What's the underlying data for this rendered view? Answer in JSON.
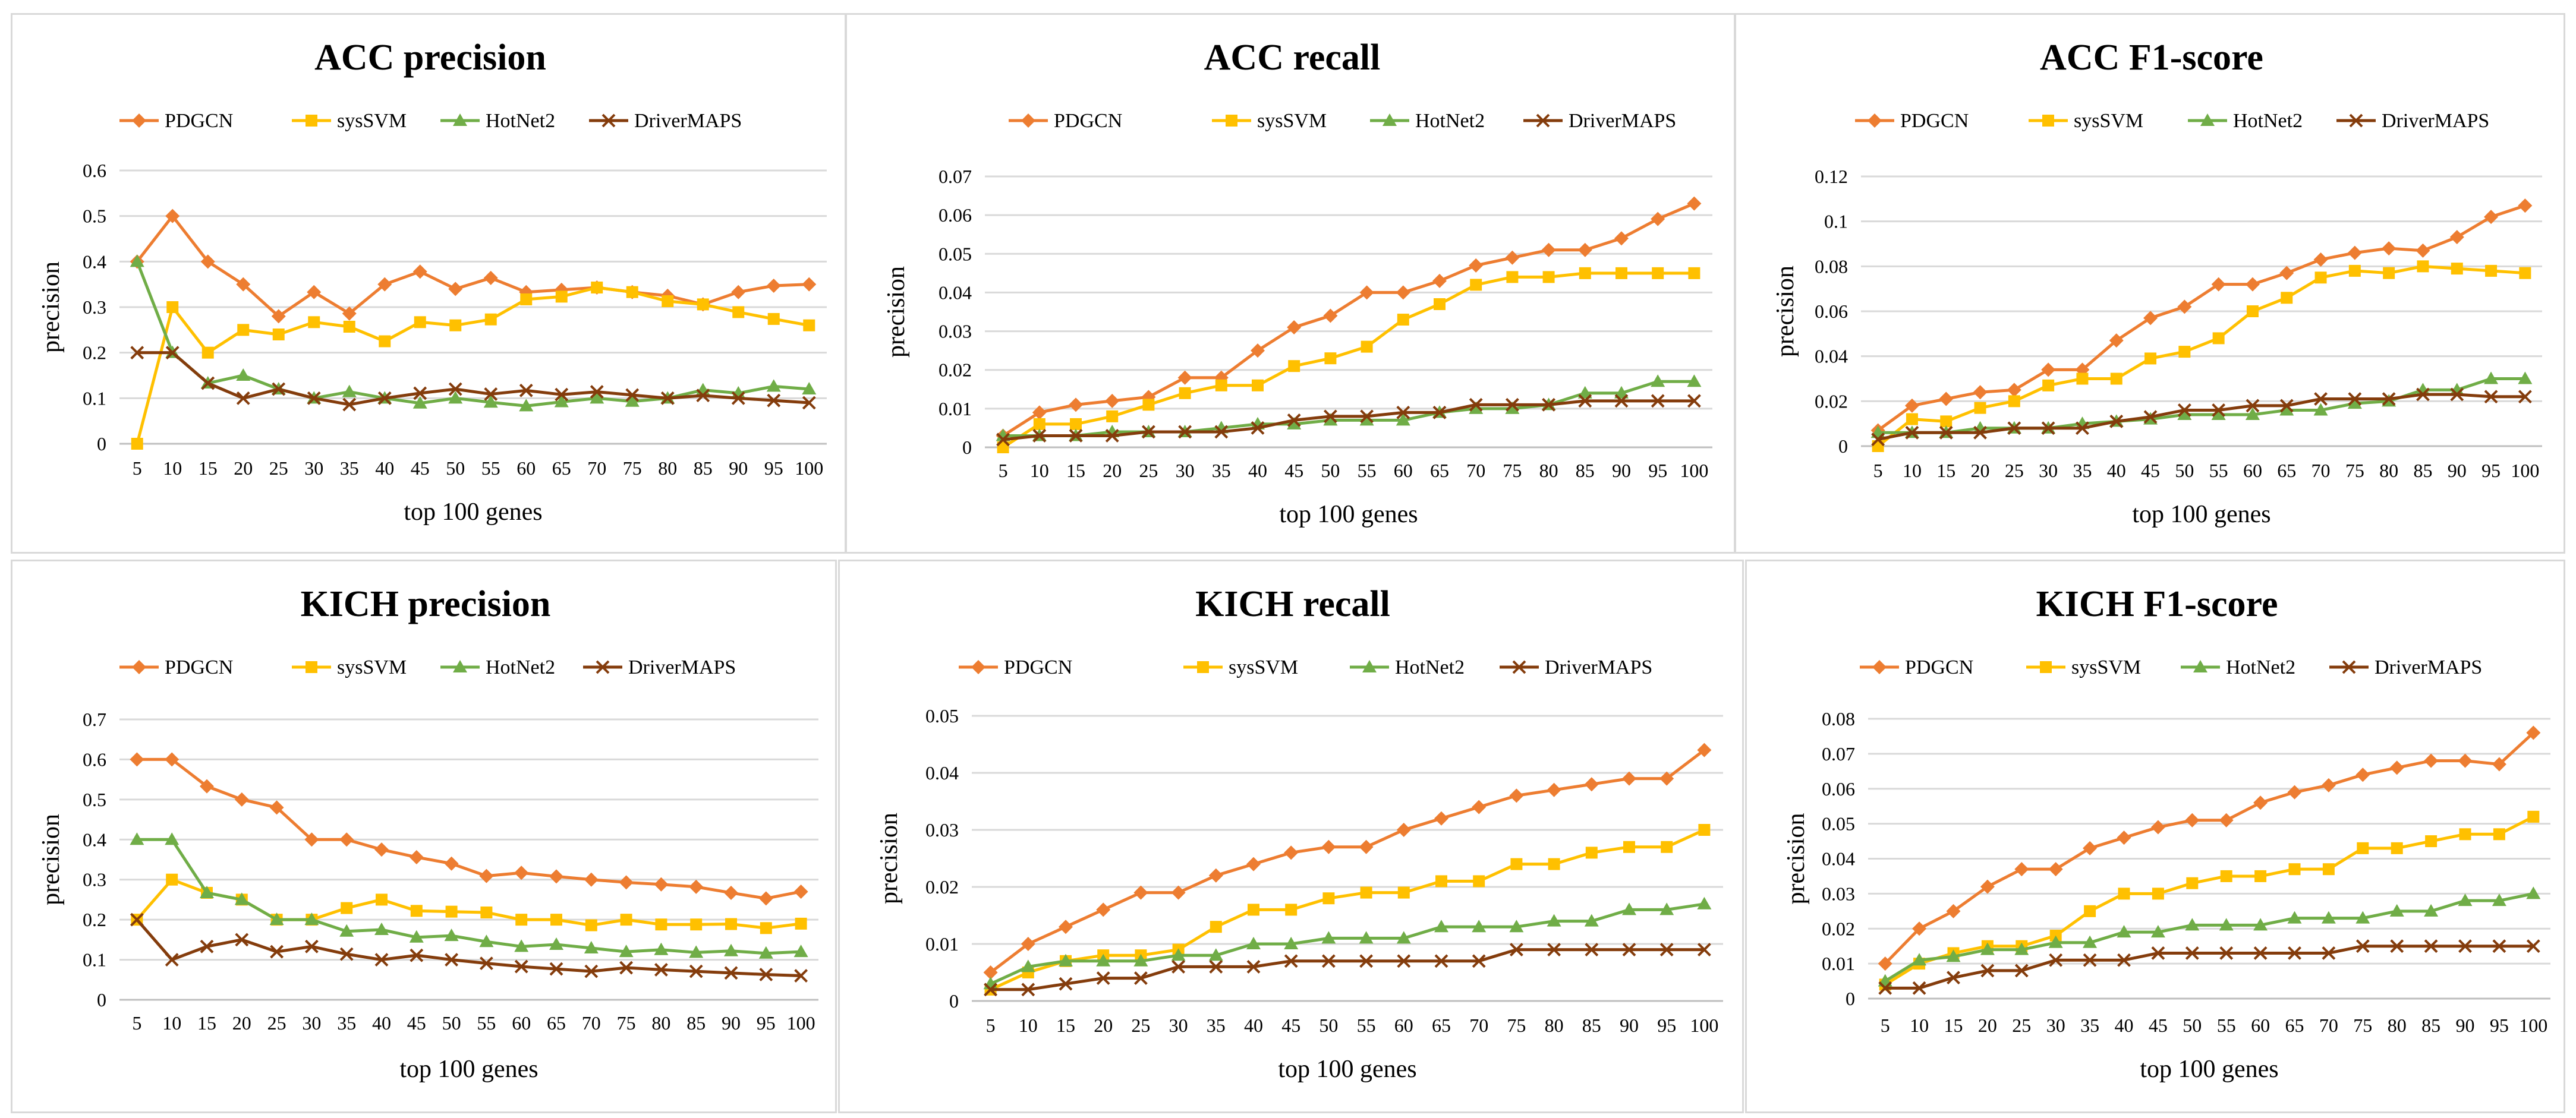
{
  "colors": {
    "PDGCN": "#ED7D31",
    "sysSVM": "#FFC000",
    "HotNet2": "#70AD47",
    "DriverMAPS": "#843C0C"
  },
  "chart_data": [
    {
      "type": "line",
      "title": "ACC precision",
      "xlabel": "top 100 genes",
      "ylabel": "precision",
      "ylim": [
        0,
        0.6
      ],
      "yticks": [
        "0",
        "0.1",
        "0.2",
        "0.3",
        "0.4",
        "0.5",
        "0.6"
      ],
      "categories": [
        "5",
        "10",
        "15",
        "20",
        "25",
        "30",
        "35",
        "40",
        "45",
        "50",
        "55",
        "60",
        "65",
        "70",
        "75",
        "80",
        "85",
        "90",
        "95",
        "100"
      ],
      "series": [
        {
          "name": "PDGCN",
          "marker": "diamond",
          "values": [
            0.4,
            0.5,
            0.4,
            0.35,
            0.28,
            0.333,
            0.286,
            0.35,
            0.378,
            0.34,
            0.364,
            0.333,
            0.338,
            0.343,
            0.333,
            0.325,
            0.306,
            0.333,
            0.347,
            0.35
          ]
        },
        {
          "name": "sysSVM",
          "marker": "square",
          "values": [
            0,
            0.3,
            0.2,
            0.25,
            0.24,
            0.267,
            0.257,
            0.225,
            0.267,
            0.26,
            0.273,
            0.317,
            0.323,
            0.343,
            0.333,
            0.313,
            0.306,
            0.289,
            0.274,
            0.26
          ]
        },
        {
          "name": "HotNet2",
          "marker": "triangle",
          "values": [
            0.4,
            0.2,
            0.133,
            0.15,
            0.12,
            0.1,
            0.114,
            0.1,
            0.089,
            0.1,
            0.091,
            0.083,
            0.092,
            0.1,
            0.093,
            0.1,
            0.118,
            0.111,
            0.126,
            0.12
          ]
        },
        {
          "name": "DriverMAPS",
          "marker": "x",
          "values": [
            0.2,
            0.2,
            0.133,
            0.1,
            0.12,
            0.1,
            0.086,
            0.1,
            0.111,
            0.12,
            0.109,
            0.117,
            0.108,
            0.114,
            0.107,
            0.1,
            0.106,
            0.1,
            0.095,
            0.09
          ]
        }
      ]
    },
    {
      "type": "line",
      "title": "ACC recall",
      "xlabel": "top 100 genes",
      "ylabel": "precision",
      "ylim": [
        0,
        0.07
      ],
      "yticks": [
        "0",
        "0.01",
        "0.02",
        "0.03",
        "0.04",
        "0.05",
        "0.06",
        "0.07"
      ],
      "categories": [
        "5",
        "10",
        "15",
        "20",
        "25",
        "30",
        "35",
        "40",
        "45",
        "50",
        "55",
        "60",
        "65",
        "70",
        "75",
        "80",
        "85",
        "90",
        "95",
        "100"
      ],
      "series": [
        {
          "name": "PDGCN",
          "marker": "diamond",
          "values": [
            0.003,
            0.009,
            0.011,
            0.012,
            0.013,
            0.018,
            0.018,
            0.025,
            0.031,
            0.034,
            0.04,
            0.04,
            0.043,
            0.047,
            0.049,
            0.051,
            0.051,
            0.054,
            0.059,
            0.063
          ]
        },
        {
          "name": "sysSVM",
          "marker": "square",
          "values": [
            0,
            0.006,
            0.006,
            0.008,
            0.011,
            0.014,
            0.016,
            0.016,
            0.021,
            0.023,
            0.026,
            0.033,
            0.037,
            0.042,
            0.044,
            0.044,
            0.045,
            0.045,
            0.045,
            0.045
          ]
        },
        {
          "name": "HotNet2",
          "marker": "triangle",
          "values": [
            0.003,
            0.003,
            0.003,
            0.004,
            0.004,
            0.004,
            0.005,
            0.006,
            0.006,
            0.007,
            0.007,
            0.007,
            0.009,
            0.01,
            0.01,
            0.011,
            0.014,
            0.014,
            0.017,
            0.017
          ]
        },
        {
          "name": "DriverMAPS",
          "marker": "x",
          "values": [
            0.002,
            0.003,
            0.003,
            0.003,
            0.004,
            0.004,
            0.004,
            0.005,
            0.007,
            0.008,
            0.008,
            0.009,
            0.009,
            0.011,
            0.011,
            0.011,
            0.012,
            0.012,
            0.012,
            0.012
          ]
        }
      ]
    },
    {
      "type": "line",
      "title": "ACC F1-score",
      "xlabel": "top 100 genes",
      "ylabel": "precision",
      "ylim": [
        0,
        0.12
      ],
      "yticks": [
        "0",
        "0.02",
        "0.04",
        "0.06",
        "0.08",
        "0.1",
        "0.12"
      ],
      "categories": [
        "5",
        "10",
        "15",
        "20",
        "25",
        "30",
        "35",
        "40",
        "45",
        "50",
        "55",
        "60",
        "65",
        "70",
        "75",
        "80",
        "85",
        "90",
        "95",
        "100"
      ],
      "series": [
        {
          "name": "PDGCN",
          "marker": "diamond",
          "values": [
            0.007,
            0.018,
            0.021,
            0.024,
            0.025,
            0.034,
            0.034,
            0.047,
            0.057,
            0.062,
            0.072,
            0.072,
            0.077,
            0.083,
            0.086,
            0.088,
            0.087,
            0.093,
            0.102,
            0.107
          ]
        },
        {
          "name": "sysSVM",
          "marker": "square",
          "values": [
            0,
            0.012,
            0.011,
            0.017,
            0.02,
            0.027,
            0.03,
            0.03,
            0.039,
            0.042,
            0.048,
            0.06,
            0.066,
            0.075,
            0.078,
            0.077,
            0.08,
            0.079,
            0.078,
            0.077
          ]
        },
        {
          "name": "HotNet2",
          "marker": "triangle",
          "values": [
            0.006,
            0.006,
            0.006,
            0.008,
            0.008,
            0.008,
            0.01,
            0.011,
            0.012,
            0.014,
            0.014,
            0.014,
            0.016,
            0.016,
            0.019,
            0.02,
            0.025,
            0.025,
            0.03,
            0.03
          ]
        },
        {
          "name": "DriverMAPS",
          "marker": "x",
          "values": [
            0.003,
            0.006,
            0.006,
            0.006,
            0.008,
            0.008,
            0.008,
            0.011,
            0.013,
            0.016,
            0.016,
            0.018,
            0.018,
            0.021,
            0.021,
            0.021,
            0.023,
            0.023,
            0.022,
            0.022
          ]
        }
      ]
    },
    {
      "type": "line",
      "title": "KICH precision",
      "xlabel": "top 100 genes",
      "ylabel": "precision",
      "ylim": [
        0,
        0.7
      ],
      "yticks": [
        "0",
        "0.1",
        "0.2",
        "0.3",
        "0.4",
        "0.5",
        "0.6",
        "0.7"
      ],
      "categories": [
        "5",
        "10",
        "15",
        "20",
        "25",
        "30",
        "35",
        "40",
        "45",
        "50",
        "55",
        "60",
        "65",
        "70",
        "75",
        "80",
        "85",
        "90",
        "95",
        "100"
      ],
      "series": [
        {
          "name": "PDGCN",
          "marker": "diamond",
          "values": [
            0.6,
            0.6,
            0.533,
            0.5,
            0.48,
            0.4,
            0.4,
            0.375,
            0.356,
            0.34,
            0.309,
            0.317,
            0.308,
            0.3,
            0.293,
            0.288,
            0.282,
            0.267,
            0.253,
            0.27
          ]
        },
        {
          "name": "sysSVM",
          "marker": "square",
          "values": [
            0.2,
            0.3,
            0.267,
            0.25,
            0.2,
            0.2,
            0.229,
            0.25,
            0.222,
            0.22,
            0.218,
            0.2,
            0.2,
            0.186,
            0.2,
            0.188,
            0.188,
            0.189,
            0.179,
            0.19
          ]
        },
        {
          "name": "HotNet2",
          "marker": "triangle",
          "values": [
            0.4,
            0.4,
            0.267,
            0.25,
            0.2,
            0.2,
            0.171,
            0.175,
            0.156,
            0.16,
            0.145,
            0.133,
            0.138,
            0.129,
            0.12,
            0.125,
            0.118,
            0.122,
            0.116,
            0.12
          ]
        },
        {
          "name": "DriverMAPS",
          "marker": "x",
          "values": [
            0.2,
            0.1,
            0.133,
            0.15,
            0.12,
            0.133,
            0.114,
            0.1,
            0.111,
            0.1,
            0.091,
            0.083,
            0.077,
            0.071,
            0.08,
            0.075,
            0.071,
            0.067,
            0.063,
            0.06
          ]
        }
      ]
    },
    {
      "type": "line",
      "title": "KICH recall",
      "xlabel": "top 100 genes",
      "ylabel": "precision",
      "ylim": [
        0,
        0.05
      ],
      "yticks": [
        "0",
        "0.01",
        "0.02",
        "0.03",
        "0.04",
        "0.05"
      ],
      "categories": [
        "5",
        "10",
        "15",
        "20",
        "25",
        "30",
        "35",
        "40",
        "45",
        "50",
        "55",
        "60",
        "65",
        "70",
        "75",
        "80",
        "85",
        "90",
        "95",
        "100"
      ],
      "series": [
        {
          "name": "PDGCN",
          "marker": "diamond",
          "values": [
            0.005,
            0.01,
            0.013,
            0.016,
            0.019,
            0.019,
            0.022,
            0.024,
            0.026,
            0.027,
            0.027,
            0.03,
            0.032,
            0.034,
            0.036,
            0.037,
            0.038,
            0.039,
            0.039,
            0.044
          ]
        },
        {
          "name": "sysSVM",
          "marker": "square",
          "values": [
            0.002,
            0.005,
            0.007,
            0.008,
            0.008,
            0.009,
            0.013,
            0.016,
            0.016,
            0.018,
            0.019,
            0.019,
            0.021,
            0.021,
            0.024,
            0.024,
            0.026,
            0.027,
            0.027,
            0.03
          ]
        },
        {
          "name": "HotNet2",
          "marker": "triangle",
          "values": [
            0.003,
            0.006,
            0.007,
            0.007,
            0.007,
            0.008,
            0.008,
            0.01,
            0.01,
            0.011,
            0.011,
            0.011,
            0.013,
            0.013,
            0.013,
            0.014,
            0.014,
            0.016,
            0.016,
            0.017
          ]
        },
        {
          "name": "DriverMAPS",
          "marker": "x",
          "values": [
            0.002,
            0.002,
            0.003,
            0.004,
            0.004,
            0.006,
            0.006,
            0.006,
            0.007,
            0.007,
            0.007,
            0.007,
            0.007,
            0.007,
            0.009,
            0.009,
            0.009,
            0.009,
            0.009,
            0.009
          ]
        }
      ]
    },
    {
      "type": "line",
      "title": "KICH F1-score",
      "xlabel": "top 100 genes",
      "ylabel": "precision",
      "ylim": [
        0,
        0.08
      ],
      "yticks": [
        "0",
        "0.01",
        "0.02",
        "0.03",
        "0.04",
        "0.05",
        "0.06",
        "0.07",
        "0.08"
      ],
      "categories": [
        "5",
        "10",
        "15",
        "20",
        "25",
        "30",
        "35",
        "40",
        "45",
        "50",
        "55",
        "60",
        "65",
        "70",
        "75",
        "80",
        "85",
        "90",
        "95",
        "100"
      ],
      "series": [
        {
          "name": "PDGCN",
          "marker": "diamond",
          "values": [
            0.01,
            0.02,
            0.025,
            0.032,
            0.037,
            0.037,
            0.043,
            0.046,
            0.049,
            0.051,
            0.051,
            0.056,
            0.059,
            0.061,
            0.064,
            0.066,
            0.068,
            0.068,
            0.067,
            0.076
          ]
        },
        {
          "name": "sysSVM",
          "marker": "square",
          "values": [
            0.004,
            0.01,
            0.013,
            0.015,
            0.015,
            0.018,
            0.025,
            0.03,
            0.03,
            0.033,
            0.035,
            0.035,
            0.037,
            0.037,
            0.043,
            0.043,
            0.045,
            0.047,
            0.047,
            0.052
          ]
        },
        {
          "name": "HotNet2",
          "marker": "triangle",
          "values": [
            0.005,
            0.011,
            0.012,
            0.014,
            0.014,
            0.016,
            0.016,
            0.019,
            0.019,
            0.021,
            0.021,
            0.021,
            0.023,
            0.023,
            0.023,
            0.025,
            0.025,
            0.028,
            0.028,
            0.03
          ]
        },
        {
          "name": "DriverMAPS",
          "marker": "x",
          "values": [
            0.003,
            0.003,
            0.006,
            0.008,
            0.008,
            0.011,
            0.011,
            0.011,
            0.013,
            0.013,
            0.013,
            0.013,
            0.013,
            0.013,
            0.015,
            0.015,
            0.015,
            0.015,
            0.015,
            0.015
          ]
        }
      ]
    }
  ]
}
